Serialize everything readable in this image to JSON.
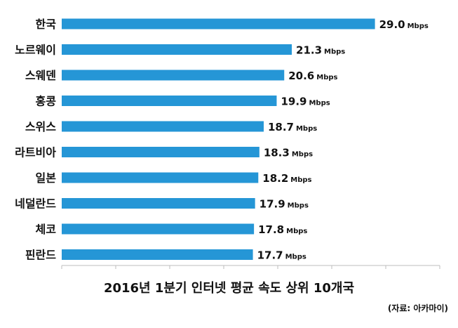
{
  "chart_data": {
    "type": "bar",
    "orientation": "horizontal",
    "categories": [
      "한국",
      "노르웨이",
      "스웨덴",
      "홍콩",
      "스위스",
      "라트비아",
      "일본",
      "네덜란드",
      "체코",
      "핀란드"
    ],
    "values": [
      29.0,
      21.3,
      20.6,
      19.9,
      18.7,
      18.3,
      18.2,
      17.9,
      17.8,
      17.7
    ],
    "value_labels": [
      "29.0",
      "21.3",
      "20.6",
      "19.9",
      "18.7",
      "18.3",
      "18.2",
      "17.9",
      "17.8",
      "17.7"
    ],
    "unit": "Mbps",
    "xlim": [
      0,
      35
    ],
    "grid": false,
    "bar_color": "#2596d6",
    "title": "2016년 1분기 인터넷 평균 속도 상위 10개국",
    "source": "(자료: 아카마이)"
  }
}
